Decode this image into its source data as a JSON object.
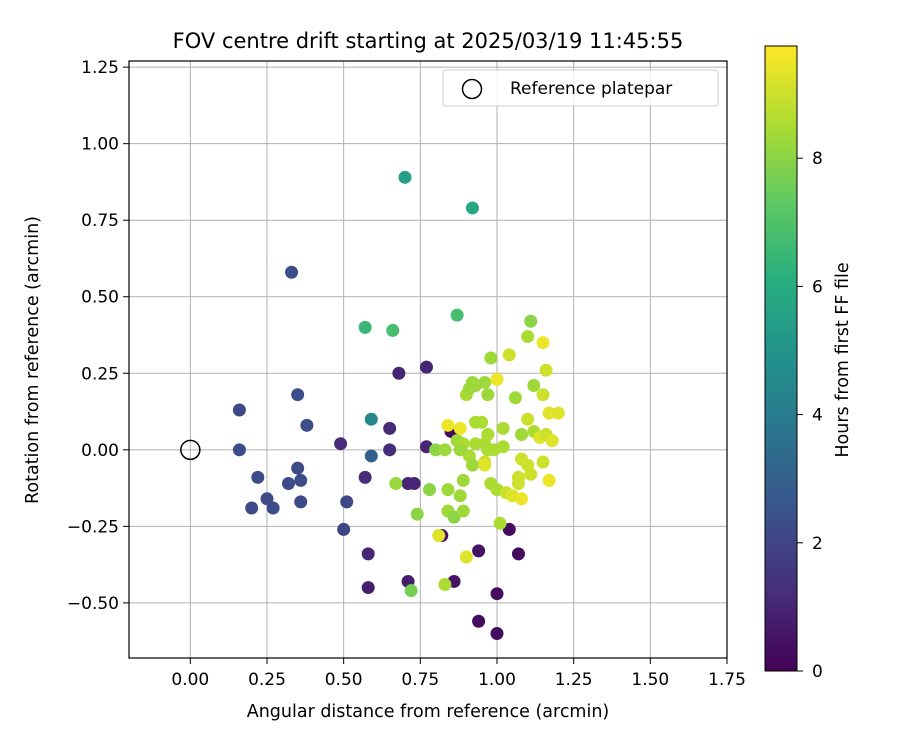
{
  "chart_data": {
    "type": "scatter",
    "title": "FOV centre drift starting at 2025/03/19 11:45:55",
    "xlabel": "Angular distance from reference (arcmin)",
    "ylabel": "Rotation from reference (arcmin)",
    "xlim": [
      -0.2,
      1.75
    ],
    "ylim": [
      -0.68,
      1.27
    ],
    "xticks": [
      "0.00",
      "0.25",
      "0.50",
      "0.75",
      "1.00",
      "1.25",
      "1.50",
      "1.75"
    ],
    "yticks": [
      "−0.50",
      "−0.25",
      "0.00",
      "0.25",
      "0.50",
      "0.75",
      "1.00",
      "1.25"
    ],
    "grid": true,
    "legend": {
      "placement": "top-right",
      "label": "Reference platepar"
    },
    "reference": {
      "x": 0.0,
      "y": 0.0
    },
    "colorbar": {
      "label": "Hours from first FF file",
      "min": 0,
      "max": 9.75,
      "ticks": [
        "0",
        "2",
        "4",
        "6",
        "8"
      ],
      "colormap": "viridis"
    },
    "series": [
      {
        "points": [
          [
            0.33,
            0.58,
            2.3
          ],
          [
            0.16,
            0.13,
            2.1
          ],
          [
            0.35,
            0.18,
            2.3
          ],
          [
            0.38,
            0.08,
            2.3
          ],
          [
            0.16,
            0.0,
            2.3
          ],
          [
            0.22,
            -0.09,
            2.2
          ],
          [
            0.35,
            -0.06,
            2.2
          ],
          [
            0.36,
            -0.1,
            2.2
          ],
          [
            0.32,
            -0.11,
            2.2
          ],
          [
            0.25,
            -0.16,
            2.2
          ],
          [
            0.2,
            -0.19,
            2.2
          ],
          [
            0.27,
            -0.19,
            2.2
          ],
          [
            0.36,
            -0.17,
            2.2
          ],
          [
            0.51,
            -0.17,
            2.1
          ],
          [
            0.5,
            -0.26,
            2.0
          ],
          [
            0.49,
            0.02,
            1.2
          ],
          [
            0.57,
            -0.09,
            1.2
          ],
          [
            0.59,
            -0.02,
            2.9
          ],
          [
            0.59,
            0.1,
            4.5
          ],
          [
            0.65,
            0.0,
            1.2
          ],
          [
            0.65,
            0.07,
            1.2
          ],
          [
            0.68,
            0.25,
            1.0
          ],
          [
            0.77,
            0.27,
            1.0
          ],
          [
            0.77,
            0.01,
            1.0
          ],
          [
            0.71,
            -0.11,
            1.0
          ],
          [
            0.73,
            -0.11,
            1.0
          ],
          [
            0.58,
            -0.34,
            1.0
          ],
          [
            0.58,
            -0.45,
            0.8
          ],
          [
            0.71,
            -0.43,
            0.8
          ],
          [
            0.82,
            -0.28,
            0.5
          ],
          [
            0.86,
            -0.43,
            0.5
          ],
          [
            0.94,
            -0.56,
            0.3
          ],
          [
            1.0,
            -0.6,
            0.3
          ],
          [
            1.0,
            -0.47,
            0.3
          ],
          [
            0.94,
            -0.33,
            0.5
          ],
          [
            1.07,
            -0.34,
            0.3
          ],
          [
            1.04,
            -0.26,
            0.3
          ],
          [
            0.85,
            0.06,
            0.3
          ],
          [
            0.7,
            0.89,
            5.5
          ],
          [
            0.92,
            0.79,
            5.8
          ],
          [
            0.57,
            0.4,
            6.5
          ],
          [
            0.66,
            0.39,
            6.8
          ],
          [
            0.87,
            0.44,
            6.8
          ],
          [
            0.67,
            -0.11,
            8.2
          ],
          [
            0.72,
            -0.46,
            7.7
          ],
          [
            0.78,
            -0.13,
            8.0
          ],
          [
            0.74,
            -0.21,
            8.0
          ],
          [
            0.8,
            0.0,
            8.0
          ],
          [
            0.84,
            -0.13,
            8.3
          ],
          [
            0.84,
            -0.2,
            8.3
          ],
          [
            0.86,
            -0.22,
            8.0
          ],
          [
            0.88,
            -0.15,
            8.3
          ],
          [
            0.89,
            -0.1,
            8.3
          ],
          [
            0.89,
            -0.2,
            8.3
          ],
          [
            0.81,
            -0.28,
            9.3
          ],
          [
            0.83,
            -0.44,
            8.5
          ],
          [
            0.9,
            -0.35,
            9.3
          ],
          [
            0.83,
            0.0,
            8.3
          ],
          [
            0.87,
            0.03,
            8.3
          ],
          [
            0.89,
            0.02,
            8.5
          ],
          [
            0.91,
            -0.02,
            8.5
          ],
          [
            0.93,
            0.02,
            8.5
          ],
          [
            0.92,
            -0.05,
            8.3
          ],
          [
            0.9,
            0.18,
            8.5
          ],
          [
            0.91,
            0.2,
            8.3
          ],
          [
            0.92,
            0.22,
            8.3
          ],
          [
            0.93,
            0.21,
            8.3
          ],
          [
            0.96,
            0.22,
            8.3
          ],
          [
            0.98,
            0.3,
            8.3
          ],
          [
            0.97,
            0.18,
            8.3
          ],
          [
            0.95,
            0.09,
            8.5
          ],
          [
            0.97,
            0.05,
            8.5
          ],
          [
            0.96,
            -0.04,
            9.0
          ],
          [
            0.96,
            -0.05,
            9.3
          ],
          [
            0.98,
            -0.11,
            8.5
          ],
          [
            1.0,
            -0.13,
            8.5
          ],
          [
            1.01,
            -0.24,
            8.5
          ],
          [
            1.03,
            -0.14,
            9.0
          ],
          [
            1.05,
            -0.15,
            9.3
          ],
          [
            1.08,
            -0.16,
            9.5
          ],
          [
            1.07,
            -0.11,
            9.0
          ],
          [
            1.07,
            -0.09,
            9.0
          ],
          [
            1.08,
            -0.03,
            9.0
          ],
          [
            1.1,
            -0.05,
            9.0
          ],
          [
            1.11,
            -0.08,
            9.0
          ],
          [
            1.15,
            -0.04,
            9.0
          ],
          [
            1.17,
            -0.1,
            9.5
          ],
          [
            1.02,
            0.01,
            8.5
          ],
          [
            1.02,
            0.07,
            8.5
          ],
          [
            1.08,
            0.05,
            8.3
          ],
          [
            1.1,
            0.1,
            9.0
          ],
          [
            1.12,
            0.06,
            8.5
          ],
          [
            1.14,
            0.04,
            9.3
          ],
          [
            1.16,
            0.05,
            9.0
          ],
          [
            1.18,
            0.03,
            9.3
          ],
          [
            1.17,
            0.12,
            9.3
          ],
          [
            1.2,
            0.12,
            9.3
          ],
          [
            1.15,
            0.18,
            9.0
          ],
          [
            1.12,
            0.21,
            8.3
          ],
          [
            1.06,
            0.17,
            8.3
          ],
          [
            1.1,
            0.37,
            8.5
          ],
          [
            1.11,
            0.42,
            8.0
          ],
          [
            1.15,
            0.35,
            9.5
          ],
          [
            1.16,
            0.26,
            9.0
          ],
          [
            1.04,
            0.31,
            9.0
          ],
          [
            1.0,
            0.23,
            9.5
          ],
          [
            0.88,
            0.07,
            9.5
          ],
          [
            0.84,
            0.08,
            9.5
          ],
          [
            0.88,
            0.0,
            8.3
          ],
          [
            0.93,
            0.09,
            8.5
          ],
          [
            0.96,
            0.02,
            8.5
          ],
          [
            0.99,
            0.0,
            8.5
          ],
          [
            0.97,
            0.0,
            8.5
          ]
        ]
      }
    ]
  }
}
